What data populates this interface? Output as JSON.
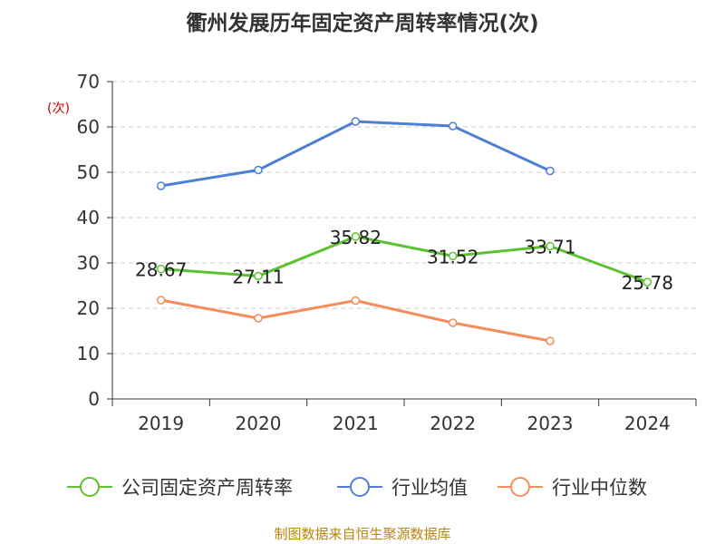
{
  "chart_data": {
    "type": "line",
    "title": "衢州发展历年固定资产周转率情况(次)",
    "ylabel": "(次)",
    "xlabel": "",
    "categories": [
      "2019",
      "2020",
      "2021",
      "2022",
      "2023",
      "2024"
    ],
    "ylim": [
      0,
      70
    ],
    "yticks": [
      0,
      10,
      20,
      30,
      40,
      50,
      60,
      70
    ],
    "grid": true,
    "legend_position": "bottom",
    "series": [
      {
        "name": "公司固定资产周转率",
        "color": "#5cc22e",
        "values": [
          28.67,
          27.11,
          35.82,
          31.52,
          33.71,
          25.78
        ],
        "labels": [
          "28.67",
          "27.11",
          "35.82",
          "31.52",
          "33.71",
          "25.78"
        ]
      },
      {
        "name": "行业均值",
        "color": "#4e7fd6",
        "values": [
          47.0,
          50.5,
          61.2,
          60.2,
          50.3,
          null
        ]
      },
      {
        "name": "行业中位数",
        "color": "#f28e5c",
        "values": [
          21.8,
          17.8,
          21.7,
          16.8,
          12.8,
          null
        ]
      }
    ]
  },
  "source": "制图数据来自恒生聚源数据库"
}
